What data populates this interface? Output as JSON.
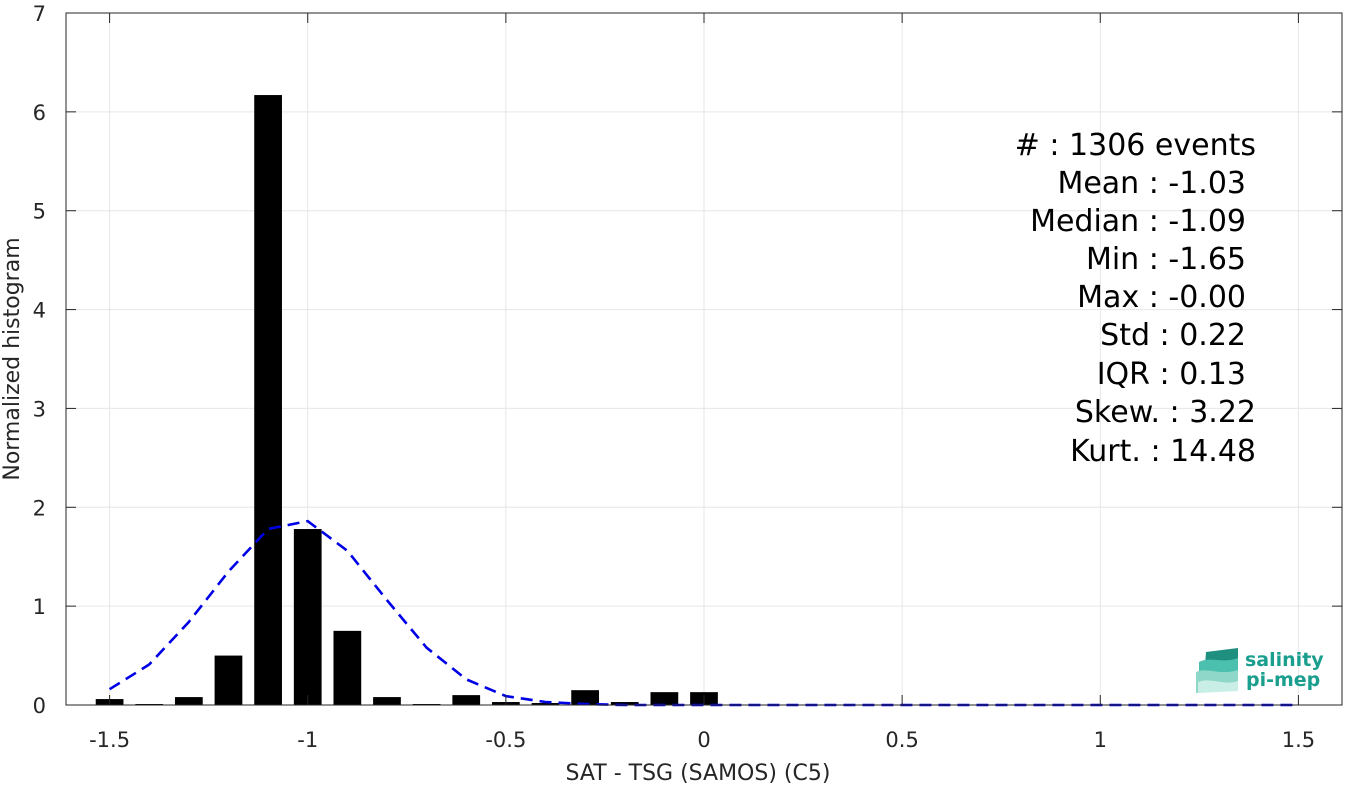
{
  "chart_data": {
    "type": "bar",
    "xlabel": "SAT - TSG (SAMOS) (C5)",
    "ylabel": "Normalized histogram",
    "xlim": [
      -1.61,
      1.61
    ],
    "ylim": [
      0,
      7
    ],
    "xticks": [
      -1.5,
      -1,
      -0.5,
      0,
      0.5,
      1,
      1.5
    ],
    "xtick_labels": [
      "-1.5",
      "-1",
      "-0.5",
      "0",
      "0.5",
      "1",
      "1.5"
    ],
    "yticks": [
      0,
      1,
      2,
      3,
      4,
      5,
      6,
      7
    ],
    "ytick_labels": [
      "0",
      "1",
      "2",
      "3",
      "4",
      "5",
      "6",
      "7"
    ],
    "grid": true,
    "bar_width": 0.07,
    "bar_color": "#000000",
    "bars": {
      "x": [
        -1.5,
        -1.4,
        -1.3,
        -1.2,
        -1.1,
        -1.0,
        -0.9,
        -0.8,
        -0.7,
        -0.6,
        -0.5,
        -0.4,
        -0.3,
        -0.2,
        -0.1,
        0.0
      ],
      "values": [
        0.06,
        0.01,
        0.08,
        0.5,
        6.17,
        1.78,
        0.75,
        0.08,
        0.01,
        0.1,
        0.03,
        0.02,
        0.15,
        0.03,
        0.13,
        0.13
      ]
    },
    "fit_curve": {
      "color": "#0000e6",
      "style": "dashed",
      "x": [
        -1.5,
        -1.4,
        -1.3,
        -1.2,
        -1.1,
        -1.0,
        -0.9,
        -0.8,
        -0.7,
        -0.6,
        -0.5,
        -0.4,
        -0.3,
        -0.2,
        -0.1,
        0.0,
        0.1,
        0.2,
        0.3,
        0.4,
        0.5,
        0.6,
        0.7,
        0.8,
        0.9,
        1.0,
        1.1,
        1.2,
        1.3,
        1.4,
        1.5
      ],
      "y": [
        0.16,
        0.41,
        0.84,
        1.35,
        1.78,
        1.86,
        1.56,
        1.06,
        0.58,
        0.26,
        0.09,
        0.03,
        0.01,
        0.0,
        0.0,
        0.0,
        0.0,
        0.0,
        0.0,
        0.0,
        0.0,
        0.0,
        0.0,
        0.0,
        0.0,
        0.0,
        0.0,
        0.0,
        0.0,
        0.0,
        0.0
      ]
    },
    "stats": [
      "#  : 1306 events",
      "Mean : -1.03",
      "Median : -1.09",
      "Min : -1.65",
      "Max : -0.00",
      "Std : 0.22",
      "IQR : 0.13",
      "Skew. : 3.22",
      "Kurt. : 14.48"
    ]
  },
  "logo": {
    "line1": "salinity",
    "line2": "pi-mep"
  }
}
